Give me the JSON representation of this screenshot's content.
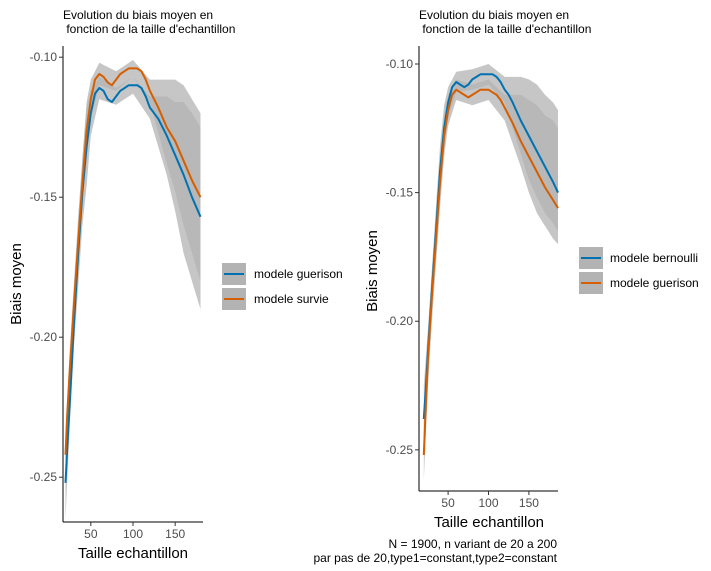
{
  "chart_data": [
    {
      "type": "line",
      "title_line1": "Evolution du biais moyen en",
      "title_line2": " fonction de la taille d'echantillon",
      "xlabel": "Taille echantillon",
      "ylabel": "Biais moyen",
      "xlim": [
        17,
        183
      ],
      "ylim": [
        -0.266,
        -0.096
      ],
      "x_ticks": [
        50,
        100,
        150
      ],
      "y_ticks": [
        -0.25,
        -0.2,
        -0.15,
        -0.1
      ],
      "y_tick_labels": [
        "-0.25",
        "-0.20",
        "-0.15",
        "-0.10"
      ],
      "legend_position": "right",
      "grid": false,
      "ribbon_color": "#b3b3b3",
      "series": [
        {
          "name": "modele guerison",
          "color": "#0072B2",
          "x": [
            20,
            22,
            25,
            30,
            35,
            40,
            45,
            50,
            55,
            60,
            65,
            70,
            75,
            80,
            85,
            90,
            95,
            100,
            105,
            110,
            115,
            120,
            125,
            130,
            140,
            150,
            160,
            170,
            180
          ],
          "y": [
            -0.252,
            -0.24,
            -0.224,
            -0.195,
            -0.17,
            -0.148,
            -0.132,
            -0.12,
            -0.113,
            -0.111,
            -0.112,
            -0.115,
            -0.116,
            -0.114,
            -0.112,
            -0.111,
            -0.11,
            -0.11,
            -0.11,
            -0.111,
            -0.114,
            -0.118,
            -0.12,
            -0.122,
            -0.128,
            -0.135,
            -0.142,
            -0.15,
            -0.157
          ],
          "band": [
            [
              20,
              -0.265,
              -0.243
            ],
            [
              25,
              -0.232,
              -0.215
            ],
            [
              30,
              -0.203,
              -0.187
            ],
            [
              35,
              -0.182,
              -0.158
            ],
            [
              40,
              -0.16,
              -0.136
            ],
            [
              45,
              -0.146,
              -0.118
            ],
            [
              50,
              -0.128,
              -0.112
            ],
            [
              60,
              -0.115,
              -0.107
            ],
            [
              80,
              -0.117,
              -0.111
            ],
            [
              100,
              -0.113,
              -0.107
            ],
            [
              120,
              -0.122,
              -0.114
            ],
            [
              140,
              -0.142,
              -0.114
            ],
            [
              150,
              -0.155,
              -0.116
            ],
            [
              160,
              -0.17,
              -0.116
            ],
            [
              170,
              -0.18,
              -0.12
            ],
            [
              180,
              -0.19,
              -0.125
            ]
          ]
        },
        {
          "name": "modele survie",
          "color": "#D55E00",
          "x": [
            20,
            22,
            25,
            30,
            35,
            40,
            45,
            50,
            55,
            60,
            65,
            70,
            75,
            80,
            85,
            90,
            95,
            100,
            105,
            110,
            115,
            120,
            125,
            130,
            140,
            150,
            160,
            170,
            180
          ],
          "y": [
            -0.242,
            -0.228,
            -0.212,
            -0.188,
            -0.166,
            -0.145,
            -0.126,
            -0.115,
            -0.108,
            -0.106,
            -0.107,
            -0.109,
            -0.11,
            -0.108,
            -0.106,
            -0.105,
            -0.104,
            -0.104,
            -0.104,
            -0.105,
            -0.108,
            -0.112,
            -0.115,
            -0.118,
            -0.125,
            -0.13,
            -0.137,
            -0.144,
            -0.15
          ],
          "band": [
            [
              20,
              -0.25,
              -0.234
            ],
            [
              25,
              -0.22,
              -0.205
            ],
            [
              30,
              -0.195,
              -0.18
            ],
            [
              35,
              -0.175,
              -0.157
            ],
            [
              40,
              -0.154,
              -0.136
            ],
            [
              45,
              -0.136,
              -0.116
            ],
            [
              50,
              -0.122,
              -0.108
            ],
            [
              60,
              -0.11,
              -0.102
            ],
            [
              80,
              -0.112,
              -0.105
            ],
            [
              100,
              -0.107,
              -0.101
            ],
            [
              120,
              -0.116,
              -0.108
            ],
            [
              140,
              -0.138,
              -0.108
            ],
            [
              150,
              -0.148,
              -0.108
            ],
            [
              160,
              -0.16,
              -0.11
            ],
            [
              170,
              -0.17,
              -0.115
            ],
            [
              180,
              -0.18,
              -0.12
            ]
          ]
        }
      ]
    },
    {
      "type": "line",
      "title_line1": "Evolution du biais moyen en",
      "title_line2": " fonction de la taille d'echantillon",
      "xlabel": "Taille echantillon",
      "ylabel": "Biais moyen",
      "xlim": [
        14,
        186
      ],
      "ylim": [
        -0.266,
        -0.093
      ],
      "x_ticks": [
        50,
        100,
        150
      ],
      "y_ticks": [
        -0.25,
        -0.2,
        -0.15,
        -0.1
      ],
      "y_tick_labels": [
        "-0.25",
        "-0.20",
        "-0.15",
        "-0.10"
      ],
      "legend_position": "right",
      "grid": false,
      "ribbon_color": "#b3b3b3",
      "series": [
        {
          "name": "modele bernoulli",
          "color": "#0072B2",
          "x": [
            20,
            22,
            25,
            30,
            35,
            40,
            45,
            50,
            55,
            60,
            65,
            70,
            75,
            80,
            85,
            90,
            95,
            100,
            105,
            110,
            115,
            120,
            125,
            130,
            140,
            150,
            160,
            170,
            180,
            186
          ],
          "y": [
            -0.238,
            -0.228,
            -0.212,
            -0.188,
            -0.165,
            -0.142,
            -0.125,
            -0.115,
            -0.109,
            -0.107,
            -0.108,
            -0.109,
            -0.108,
            -0.106,
            -0.105,
            -0.104,
            -0.104,
            -0.104,
            -0.104,
            -0.105,
            -0.107,
            -0.11,
            -0.112,
            -0.115,
            -0.122,
            -0.128,
            -0.134,
            -0.14,
            -0.146,
            -0.15
          ],
          "band": [
            [
              20,
              -0.25,
              -0.225
            ],
            [
              25,
              -0.222,
              -0.203
            ],
            [
              30,
              -0.197,
              -0.18
            ],
            [
              35,
              -0.175,
              -0.155
            ],
            [
              40,
              -0.152,
              -0.132
            ],
            [
              45,
              -0.133,
              -0.116
            ],
            [
              50,
              -0.121,
              -0.109
            ],
            [
              60,
              -0.111,
              -0.103
            ],
            [
              80,
              -0.11,
              -0.102
            ],
            [
              100,
              -0.108,
              -0.1
            ],
            [
              120,
              -0.115,
              -0.105
            ],
            [
              140,
              -0.135,
              -0.105
            ],
            [
              150,
              -0.145,
              -0.106
            ],
            [
              160,
              -0.152,
              -0.108
            ],
            [
              170,
              -0.158,
              -0.112
            ],
            [
              180,
              -0.162,
              -0.115
            ],
            [
              186,
              -0.165,
              -0.118
            ]
          ]
        },
        {
          "name": "modele guerison",
          "color": "#D55E00",
          "x": [
            20,
            22,
            25,
            30,
            35,
            40,
            45,
            50,
            55,
            60,
            65,
            70,
            75,
            80,
            85,
            90,
            95,
            100,
            105,
            110,
            115,
            120,
            125,
            130,
            140,
            150,
            160,
            170,
            180,
            186
          ],
          "y": [
            -0.252,
            -0.236,
            -0.215,
            -0.19,
            -0.168,
            -0.146,
            -0.128,
            -0.118,
            -0.112,
            -0.11,
            -0.111,
            -0.112,
            -0.113,
            -0.112,
            -0.111,
            -0.11,
            -0.11,
            -0.11,
            -0.111,
            -0.112,
            -0.114,
            -0.117,
            -0.12,
            -0.123,
            -0.13,
            -0.136,
            -0.142,
            -0.148,
            -0.153,
            -0.156
          ],
          "band": [
            [
              20,
              -0.262,
              -0.24
            ],
            [
              25,
              -0.226,
              -0.205
            ],
            [
              30,
              -0.2,
              -0.18
            ],
            [
              35,
              -0.178,
              -0.158
            ],
            [
              40,
              -0.156,
              -0.136
            ],
            [
              45,
              -0.136,
              -0.12
            ],
            [
              50,
              -0.124,
              -0.112
            ],
            [
              60,
              -0.114,
              -0.106
            ],
            [
              80,
              -0.116,
              -0.108
            ],
            [
              100,
              -0.114,
              -0.106
            ],
            [
              120,
              -0.122,
              -0.112
            ],
            [
              140,
              -0.14,
              -0.112
            ],
            [
              150,
              -0.15,
              -0.114
            ],
            [
              160,
              -0.158,
              -0.116
            ],
            [
              170,
              -0.163,
              -0.12
            ],
            [
              180,
              -0.168,
              -0.122
            ],
            [
              186,
              -0.17,
              -0.125
            ]
          ]
        }
      ]
    }
  ],
  "caption_line1": "N = 1900, n variant de 20 a 200",
  "caption_line2": "par pas de 20,type1=constant,type2=constant"
}
